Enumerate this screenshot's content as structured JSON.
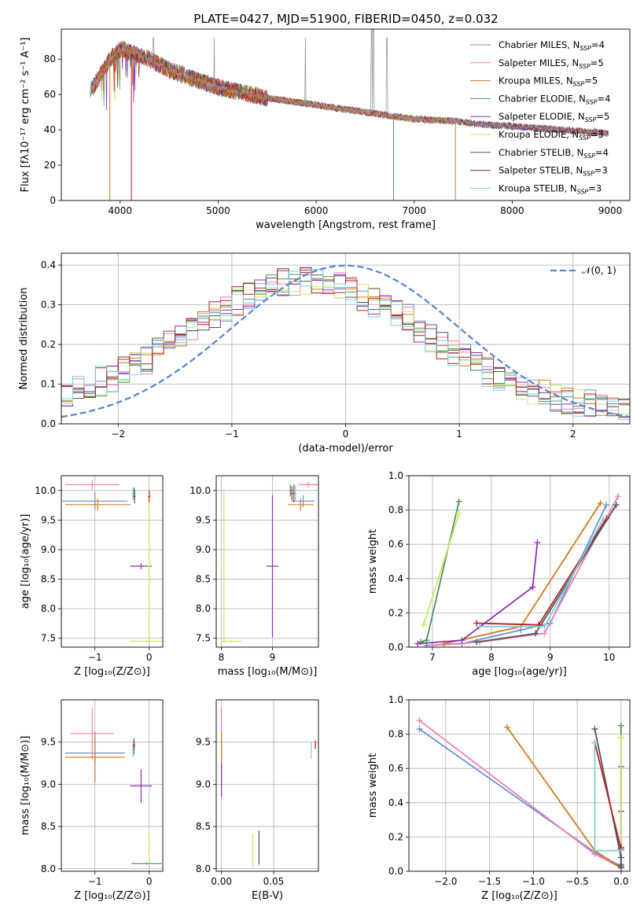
{
  "figure_title": "PLATE=0427, MJD=51900, FIBERID=0450, z=0.032",
  "colors": {
    "s0": "#6a8fd6",
    "s1": "#ea80b4",
    "s2": "#d07a20",
    "s3": "#4f8f5c",
    "s4": "#8e2fb0",
    "s5": "#c6e86a",
    "s6": "#555555",
    "s7": "#b22222",
    "s8": "#7fd0d8",
    "data": "#9a9a9a",
    "gauss": "#5b86d6"
  },
  "legend_spectrum": [
    {
      "text": "Chabrier MILES, N",
      "sub": "SSP",
      "tail": "=4"
    },
    {
      "text": "Salpeter MILES, N",
      "sub": "SSP",
      "tail": "=5"
    },
    {
      "text": "Kroupa MILES, N",
      "sub": "SSP",
      "tail": "=5"
    },
    {
      "text": "Chabrier ELODIE, N",
      "sub": "SSP",
      "tail": "=4"
    },
    {
      "text": "Salpeter ELODIE, N",
      "sub": "SSP",
      "tail": "=5"
    },
    {
      "text": "Kroupa ELODIE, N",
      "sub": "SSP",
      "tail": "=3"
    },
    {
      "text": "Chabrier STELIB, N",
      "sub": "SSP",
      "tail": "=4"
    },
    {
      "text": "Salpeter STELIB, N",
      "sub": "SSP",
      "tail": "=3"
    },
    {
      "text": "Kroupa STELIB, N",
      "sub": "SSP",
      "tail": "=3"
    }
  ],
  "chart_data": [
    {
      "panel": "spectrum",
      "type": "line",
      "title": "PLATE=0427, MJD=51900, FIBERID=0450, z=0.032",
      "xlabel": "wavelength [Angstrom, rest frame]",
      "ylabel": "Flux [fλ10⁻¹⁷ erg cm⁻² s⁻¹ A⁻¹]",
      "xlim": [
        3400,
        9200
      ],
      "ylim": [
        0,
        97
      ],
      "xticks": [
        "4000",
        "5000",
        "6000",
        "7000",
        "8000",
        "9000"
      ],
      "yticks": [
        "0",
        "20",
        "40",
        "60",
        "80"
      ],
      "continuum": {
        "x": [
          3700,
          3900,
          4000,
          4100,
          4300,
          4500,
          4800,
          5000,
          5500,
          6000,
          6500,
          7000,
          7400,
          7700,
          8000,
          8500,
          9000
        ],
        "y": [
          62,
          80,
          86,
          84,
          80,
          74,
          68,
          64,
          58,
          54,
          50,
          46,
          45,
          43,
          42,
          40,
          38
        ]
      },
      "series": [
        "Chabrier MILES, NSSP=4",
        "Salpeter MILES, NSSP=5",
        "Kroupa MILES, NSSP=5",
        "Chabrier ELODIE, NSSP=4",
        "Salpeter ELODIE, NSSP=5",
        "Kroupa ELODIE, NSSP=3",
        "Chabrier STELIB, NSSP=4",
        "Salpeter STELIB, NSSP=3",
        "Kroupa STELIB, NSSP=3"
      ],
      "grid": false,
      "legend": "upper right"
    },
    {
      "panel": "residuals",
      "type": "line",
      "xlabel": "(data-model)/error",
      "ylabel": "Normed distribution",
      "xlim": [
        -2.5,
        2.5
      ],
      "ylim": [
        0,
        0.43
      ],
      "xticks": [
        -2,
        -1,
        0,
        1,
        2
      ],
      "yticks": [
        "0.0",
        "0.1",
        "0.2",
        "0.3",
        "0.4"
      ],
      "bin_width": 0.1,
      "gaussian_label": "𝒩(0, 1)",
      "gaussian": {
        "mean": 0,
        "sigma": 1
      },
      "grid": true,
      "legend": "upper right"
    },
    {
      "panel": "age_vs_Z",
      "type": "scatter",
      "xlabel": "Z [log₁₀(Z/Z⊙)]",
      "ylabel": "age  [log₁₀(age/yr)]",
      "xlim": [
        -1.62,
        0.25
      ],
      "ylim": [
        7.35,
        10.25
      ],
      "xticks": [
        "−1",
        "0"
      ],
      "yticks": [
        "7.5",
        "8.0",
        "8.5",
        "9.0",
        "9.5",
        "10.0"
      ],
      "points": [
        {
          "s": 0,
          "x": -1.0,
          "y": 9.82,
          "xe": 0.6,
          "ye": 0.15
        },
        {
          "s": 1,
          "x": -1.05,
          "y": 10.1,
          "xe": 0.5,
          "ye": 0.08
        },
        {
          "s": 2,
          "x": -0.95,
          "y": 9.76,
          "xe": 0.6,
          "ye": 0.1
        },
        {
          "s": 3,
          "x": -0.28,
          "y": 9.95,
          "xe": 0.02,
          "ye": 0.1
        },
        {
          "s": 4,
          "x": -0.15,
          "y": 8.72,
          "xe": 0.2,
          "ye": 0.05
        },
        {
          "s": 5,
          "x": 0.0,
          "y": 8.72,
          "xe": 0.02,
          "ye": 1.3
        },
        {
          "s": 6,
          "x": -0.27,
          "y": 9.9,
          "xe": 0.02,
          "ye": 0.12
        },
        {
          "s": 7,
          "x": 0.0,
          "y": 9.9,
          "xe": 0.02,
          "ye": 0.1
        },
        {
          "s": 8,
          "x": -0.3,
          "y": 9.95,
          "xe": 0.02,
          "ye": 0.1
        },
        {
          "s": 5,
          "x": -0.05,
          "y": 7.45,
          "xe": 0.3,
          "ye": 0.02
        }
      ]
    },
    {
      "panel": "age_vs_mass",
      "type": "scatter",
      "xlabel": "mass [log₁₀(M/M⊙)]",
      "ylabel": "",
      "xlim": [
        7.9,
        9.9
      ],
      "ylim": [
        7.35,
        10.25
      ],
      "xticks": [
        "8",
        "9"
      ],
      "yticks": [
        "7.5",
        "8.0",
        "8.5",
        "9.0",
        "9.5",
        "10.0"
      ],
      "points": [
        {
          "s": 0,
          "x": 9.6,
          "y": 9.82,
          "xe": 0.22,
          "ye": 0.1
        },
        {
          "s": 1,
          "x": 9.7,
          "y": 10.1,
          "xe": 0.2,
          "ye": 0.05
        },
        {
          "s": 2,
          "x": 9.55,
          "y": 9.76,
          "xe": 0.25,
          "ye": 0.1
        },
        {
          "s": 3,
          "x": 9.35,
          "y": 10.0,
          "xe": 0.02,
          "ye": 0.1
        },
        {
          "s": 4,
          "x": 9.0,
          "y": 8.72,
          "xe": 0.12,
          "ye": 1.2
        },
        {
          "s": 5,
          "x": 8.05,
          "y": 8.72,
          "xe": 0.02,
          "ye": 1.3
        },
        {
          "s": 6,
          "x": 9.42,
          "y": 9.95,
          "xe": 0.02,
          "ye": 0.15
        },
        {
          "s": 7,
          "x": 9.38,
          "y": 9.95,
          "xe": 0.02,
          "ye": 0.12
        },
        {
          "s": 8,
          "x": 9.45,
          "y": 9.95,
          "xe": 0.02,
          "ye": 0.12
        },
        {
          "s": 5,
          "x": 8.2,
          "y": 7.45,
          "xe": 0.2,
          "ye": 0.02
        }
      ]
    },
    {
      "panel": "massweight_vs_age",
      "type": "line",
      "xlabel": "age  [log₁₀(age/yr)]",
      "ylabel": "mass weight",
      "xlim": [
        6.6,
        10.35
      ],
      "ylim": [
        0,
        1.0
      ],
      "xticks": [
        "7",
        "8",
        "9",
        "10"
      ],
      "yticks": [
        "0.0",
        "0.2",
        "0.4",
        "0.6",
        "0.8",
        "1.0"
      ],
      "series": [
        {
          "s": 0,
          "x": [
            6.9,
            7.5,
            8.5,
            9.0,
            9.95
          ],
          "y": [
            0.01,
            0.02,
            0.1,
            0.14,
            0.83
          ]
        },
        {
          "s": 1,
          "x": [
            7.0,
            7.8,
            8.9,
            10.15
          ],
          "y": [
            0.01,
            0.03,
            0.08,
            0.88
          ]
        },
        {
          "s": 2,
          "x": [
            7.2,
            8.5,
            9.85
          ],
          "y": [
            0.02,
            0.12,
            0.84
          ]
        },
        {
          "s": 3,
          "x": [
            6.8,
            6.9,
            7.45
          ],
          "y": [
            0.03,
            0.04,
            0.85
          ]
        },
        {
          "s": 4,
          "x": [
            6.75,
            7.5,
            8.7,
            8.78
          ],
          "y": [
            0.02,
            0.04,
            0.35,
            0.61
          ]
        },
        {
          "s": 5,
          "x": [
            6.85,
            7.45
          ],
          "y": [
            0.13,
            0.78
          ]
        },
        {
          "s": 6,
          "x": [
            7.75,
            8.75,
            10.12
          ],
          "y": [
            0.03,
            0.08,
            0.83
          ]
        },
        {
          "s": 7,
          "x": [
            7.75,
            8.8,
            9.95
          ],
          "y": [
            0.14,
            0.13,
            0.75
          ]
        },
        {
          "s": 8,
          "x": [
            7.8,
            8.9,
            9.9
          ],
          "y": [
            0.12,
            0.12,
            0.75
          ]
        }
      ]
    },
    {
      "panel": "mass_vs_Z",
      "type": "scatter",
      "xlabel": "Z [log₁₀(Z/Z⊙)]",
      "ylabel": "mass [log₁₀(M/M⊙)]",
      "xlim": [
        -1.62,
        0.25
      ],
      "ylim": [
        7.97,
        10.0
      ],
      "xticks": [
        "−1",
        "0"
      ],
      "yticks": [
        "8.0",
        "8.5",
        "9.0",
        "9.5"
      ],
      "points": [
        {
          "s": 0,
          "x": -1.0,
          "y": 9.37,
          "xe": 0.55,
          "ye": 0.12
        },
        {
          "s": 1,
          "x": -1.05,
          "y": 9.6,
          "xe": 0.4,
          "ye": 0.3
        },
        {
          "s": 2,
          "x": -1.0,
          "y": 9.32,
          "xe": 0.55,
          "ye": 0.3
        },
        {
          "s": 3,
          "x": -0.28,
          "y": 9.45,
          "xe": 0.02,
          "ye": 0.1
        },
        {
          "s": 4,
          "x": -0.15,
          "y": 8.98,
          "xe": 0.2,
          "ye": 0.2
        },
        {
          "s": 5,
          "x": 0.0,
          "y": 8.22,
          "xe": 0.02,
          "ye": 0.2
        },
        {
          "s": 6,
          "x": -0.28,
          "y": 9.45,
          "xe": 0.02,
          "ye": 0.05
        },
        {
          "s": 7,
          "x": -0.28,
          "y": 9.47,
          "xe": 0.02,
          "ye": 0.05
        },
        {
          "s": 8,
          "x": -0.3,
          "y": 9.4,
          "xe": 0.02,
          "ye": 0.08
        },
        {
          "s": 3,
          "x": -0.05,
          "y": 8.06,
          "xe": 0.28,
          "ye": 0.01
        }
      ]
    },
    {
      "panel": "mass_vs_ebv",
      "type": "scatter",
      "xlabel": "E(B-V)",
      "ylabel": "",
      "xlim": [
        -0.005,
        0.093
      ],
      "ylim": [
        7.97,
        10.0
      ],
      "xticks": [
        "0.00",
        "0.05"
      ],
      "yticks": [
        "8.0",
        "8.5",
        "9.0",
        "9.5"
      ],
      "points": [
        {
          "s": 0,
          "x": 0.0,
          "y": 9.37,
          "xe": 0.0005,
          "ye": 0.12
        },
        {
          "s": 1,
          "x": 0.0,
          "y": 9.6,
          "xe": 0.0005,
          "ye": 0.3
        },
        {
          "s": 2,
          "x": 0.0,
          "y": 9.32,
          "xe": 0.0005,
          "ye": 0.3
        },
        {
          "s": 4,
          "x": 0.0,
          "y": 9.05,
          "xe": 0.0005,
          "ye": 0.2
        },
        {
          "s": 5,
          "x": 0.03,
          "y": 8.22,
          "xe": 0.0005,
          "ye": 0.2
        },
        {
          "s": 6,
          "x": 0.036,
          "y": 8.25,
          "xe": 0.0005,
          "ye": 0.2
        },
        {
          "s": 8,
          "x": 0.086,
          "y": 9.4,
          "xe": 0.0005,
          "ye": 0.1
        },
        {
          "s": 7,
          "x": 0.09,
          "y": 9.47,
          "xe": 0.0005,
          "ye": 0.05
        }
      ]
    },
    {
      "panel": "massweight_vs_Z",
      "type": "line",
      "xlabel": "Z [log₁₀(Z/Z⊙)]",
      "ylabel": "mass weight",
      "xlim": [
        -2.42,
        0.1
      ],
      "ylim": [
        0,
        1.0
      ],
      "xticks": [
        "−2.0",
        "−1.5",
        "−1.0",
        "−0.5",
        "0.0"
      ],
      "yticks": [
        "0.0",
        "0.2",
        "0.4",
        "0.6",
        "0.8",
        "1.0"
      ],
      "series": [
        {
          "s": 0,
          "x": [
            -2.3,
            -0.3,
            0.0
          ],
          "y": [
            0.83,
            0.11,
            0.03
          ]
        },
        {
          "s": 1,
          "x": [
            -2.3,
            -0.3,
            0.0
          ],
          "y": [
            0.88,
            0.1,
            0.02
          ]
        },
        {
          "s": 2,
          "x": [
            -1.3,
            -0.3,
            0.0
          ],
          "y": [
            0.84,
            0.12,
            0.02
          ]
        },
        {
          "s": 3,
          "x": [
            0.0,
            0.0,
            0.0
          ],
          "y": [
            0.85,
            0.04,
            0.03
          ]
        },
        {
          "s": 4,
          "x": [
            0.0,
            0.0,
            0.0
          ],
          "y": [
            0.61,
            0.35,
            0.02
          ]
        },
        {
          "s": 5,
          "x": [
            0.0,
            0.0
          ],
          "y": [
            0.78,
            0.13
          ]
        },
        {
          "s": 6,
          "x": [
            -0.3,
            0.0,
            0.0
          ],
          "y": [
            0.83,
            0.08,
            0.03
          ]
        },
        {
          "s": 7,
          "x": [
            -0.3,
            0.0,
            0.0
          ],
          "y": [
            0.75,
            0.13,
            0.14
          ]
        },
        {
          "s": 8,
          "x": [
            -0.3,
            -0.3,
            0.0
          ],
          "y": [
            0.75,
            0.12,
            0.12
          ]
        }
      ]
    }
  ]
}
